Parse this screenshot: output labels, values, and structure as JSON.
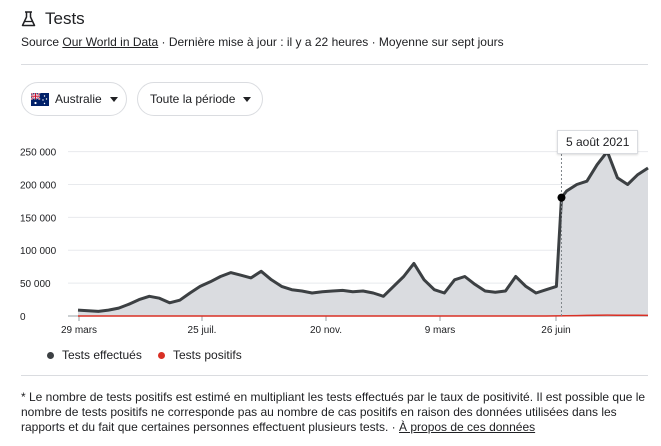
{
  "header": {
    "title": "Tests",
    "icon": "flask-icon",
    "source_prefix": "Source ",
    "source_link": "Our World in Data",
    "source_suffix": " · Dernière mise à jour : il y a 22 heures · Moyenne sur sept jours"
  },
  "filters": {
    "country": "Australie",
    "country_flag": "australia-flag-icon",
    "period": "Toute la période"
  },
  "tooltip": {
    "date": "5 août 2021"
  },
  "legend": {
    "tests": "Tests effectués",
    "positives": "Tests positifs"
  },
  "footnote": {
    "text": "* Le nombre de tests positifs est estimé en multipliant les tests effectués par le taux de positivité. Il est possible que le nombre de tests positifs ne corresponde pas au nombre de cas positifs en raison des données utilisées dans les rapports et du fait que certaines personnes effectuent plusieurs tests.",
    "separator": " · ",
    "link": "À propos de ces données"
  },
  "colors": {
    "tests_line": "#3c4043",
    "tests_area": "#dadce0",
    "positives_line": "#d93025",
    "grid": "#e8eaed"
  },
  "chart_data": {
    "type": "area",
    "y_ticks": [
      "250 000",
      "200 000",
      "150 000",
      "100 000",
      "50 000",
      "0"
    ],
    "y_tick_values": [
      250000,
      200000,
      150000,
      100000,
      50000,
      0
    ],
    "x_ticks": [
      "29 mars",
      "25 juil.",
      "20 nov.",
      "9 mars",
      "26 juin"
    ],
    "ylim": [
      0,
      260000
    ],
    "highlight": {
      "label": "5 août 2021",
      "x": 475,
      "y": 180000
    },
    "series": [
      {
        "name": "Tests effectués",
        "x": [
          0,
          10,
          20,
          30,
          40,
          50,
          60,
          70,
          80,
          90,
          100,
          110,
          120,
          130,
          140,
          150,
          160,
          170,
          180,
          190,
          200,
          210,
          220,
          230,
          240,
          250,
          260,
          270,
          280,
          290,
          300,
          310,
          320,
          330,
          340,
          350,
          360,
          370,
          380,
          390,
          400,
          410,
          420,
          430,
          440,
          450,
          460,
          470,
          475,
          480,
          490,
          500,
          510,
          520,
          530,
          540,
          550,
          560
        ],
        "y": [
          9000,
          8000,
          7000,
          9000,
          12000,
          18000,
          25000,
          30000,
          27000,
          20000,
          24000,
          35000,
          45000,
          52000,
          60000,
          66000,
          62000,
          58000,
          68000,
          55000,
          45000,
          40000,
          38000,
          35000,
          37000,
          38000,
          39000,
          37000,
          38000,
          35000,
          30000,
          45000,
          60000,
          80000,
          55000,
          40000,
          35000,
          55000,
          60000,
          48000,
          38000,
          36000,
          38000,
          60000,
          45000,
          35000,
          40000,
          45000,
          180000,
          190000,
          200000,
          205000,
          230000,
          250000,
          210000,
          200000,
          215000,
          225000
        ]
      },
      {
        "name": "Tests positifs",
        "x": [
          0,
          460,
          470,
          480,
          490,
          500,
          510,
          520,
          530,
          540,
          550,
          560
        ],
        "y": [
          0,
          0,
          100,
          300,
          600,
          900,
          1200,
          1300,
          1200,
          1100,
          1000,
          900
        ]
      }
    ]
  }
}
